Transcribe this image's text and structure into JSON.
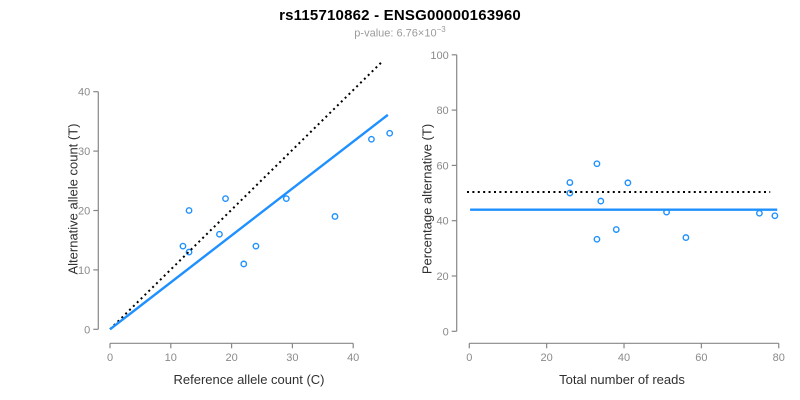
{
  "header": {
    "title": "rs115710862 - ENSG00000163960",
    "p_value_label": "p-value: 6.76×10",
    "p_value_exponent": "−3"
  },
  "colors": {
    "point_blue": "#1E90FF",
    "line_blue": "#1E90FF",
    "identity_black": "#000000",
    "axis_gray": "#878787",
    "tick_text_gray": "#8a8a8a",
    "axis_title_color": "#303030",
    "title_color": "#000000",
    "subtitle_gray": "#9b9b9b"
  },
  "chart_data": [
    {
      "type": "scatter",
      "id": "ref-vs-alt-counts",
      "xlabel": "Reference allele count (C)",
      "ylabel": "Alternative allele count (T)",
      "xticks": [
        0,
        10,
        20,
        30,
        40
      ],
      "yticks": [
        0,
        10,
        20,
        30,
        40
      ],
      "xlim": [
        0,
        46
      ],
      "ylim": [
        0,
        45
      ],
      "grid": false,
      "legend": null,
      "points": [
        [
          12,
          14
        ],
        [
          13,
          13
        ],
        [
          13,
          20
        ],
        [
          18,
          16
        ],
        [
          19,
          22
        ],
        [
          22,
          11
        ],
        [
          24,
          14
        ],
        [
          29,
          22
        ],
        [
          37,
          19
        ],
        [
          43,
          32
        ],
        [
          46,
          33
        ]
      ],
      "lines": [
        {
          "name": "identity-line",
          "style": "dotted",
          "color": "identity_black",
          "width": 2,
          "x1": 0,
          "y1": 0,
          "x2": 44.6,
          "y2": 44.9
        },
        {
          "name": "fit-line",
          "style": "solid",
          "color": "line_blue",
          "width": 2.4,
          "x1": 0,
          "y1": 0,
          "x2": 45.7,
          "y2": 36.1
        }
      ]
    },
    {
      "type": "scatter",
      "id": "percentage-vs-total-reads",
      "xlabel": "Total number of reads",
      "ylabel": "Percentage alternative (T)",
      "xticks": [
        0,
        20,
        40,
        60,
        80
      ],
      "yticks": [
        0,
        20,
        40,
        60,
        80,
        100
      ],
      "xlim": [
        0,
        80
      ],
      "ylim": [
        0,
        100
      ],
      "grid": false,
      "legend": null,
      "points": [
        [
          26,
          50
        ],
        [
          26,
          53.8
        ],
        [
          33,
          33.3
        ],
        [
          33,
          60.6
        ],
        [
          34,
          47.1
        ],
        [
          38,
          36.8
        ],
        [
          41,
          53.7
        ],
        [
          51,
          43.1
        ],
        [
          56,
          33.9
        ],
        [
          75,
          42.7
        ],
        [
          79,
          41.8
        ]
      ],
      "lines": [
        {
          "name": "expected-50pct-line",
          "style": "dotted",
          "color": "identity_black",
          "width": 2,
          "x1": -0.6,
          "y1": 50.4,
          "x2": 77.8,
          "y2": 50.4
        },
        {
          "name": "mean-pct-line",
          "style": "solid",
          "color": "line_blue",
          "width": 2.4,
          "x1": 0.2,
          "y1": 44,
          "x2": 79.6,
          "y2": 44
        }
      ]
    }
  ]
}
